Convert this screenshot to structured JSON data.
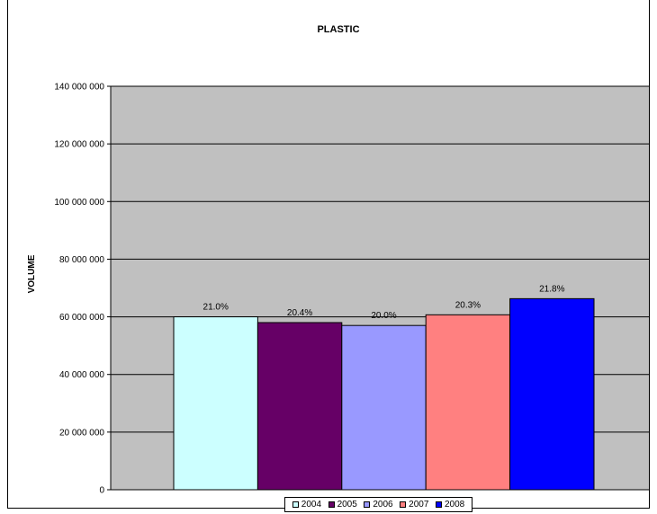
{
  "chart_data": {
    "type": "bar",
    "title": "PLASTIC",
    "xlabel": "",
    "ylabel": "VOLUME",
    "ylim": [
      0,
      140000000
    ],
    "y_ticks": [
      0,
      20000000,
      40000000,
      60000000,
      80000000,
      100000000,
      120000000,
      140000000
    ],
    "y_tick_labels": [
      "0",
      "20 000 000",
      "40 000 000",
      "60 000 000",
      "80 000 000",
      "100 000 000",
      "120 000 000",
      "140 000 000"
    ],
    "grid": true,
    "plot_background": "#c0c0c0",
    "legend_position": "bottom",
    "categories": [
      ""
    ],
    "series": [
      {
        "name": "2004",
        "values": [
          60000000
        ],
        "label": "21.0%",
        "color": "#ccffff"
      },
      {
        "name": "2005",
        "values": [
          58000000
        ],
        "label": "20.4%",
        "color": "#660066"
      },
      {
        "name": "2006",
        "values": [
          57000000
        ],
        "label": "20.0%",
        "color": "#9999ff"
      },
      {
        "name": "2007",
        "values": [
          60700000
        ],
        "label": "20.3%",
        "color": "#ff8080"
      },
      {
        "name": "2008",
        "values": [
          66300000
        ],
        "label": "21.8%",
        "color": "#0000ff"
      }
    ]
  }
}
